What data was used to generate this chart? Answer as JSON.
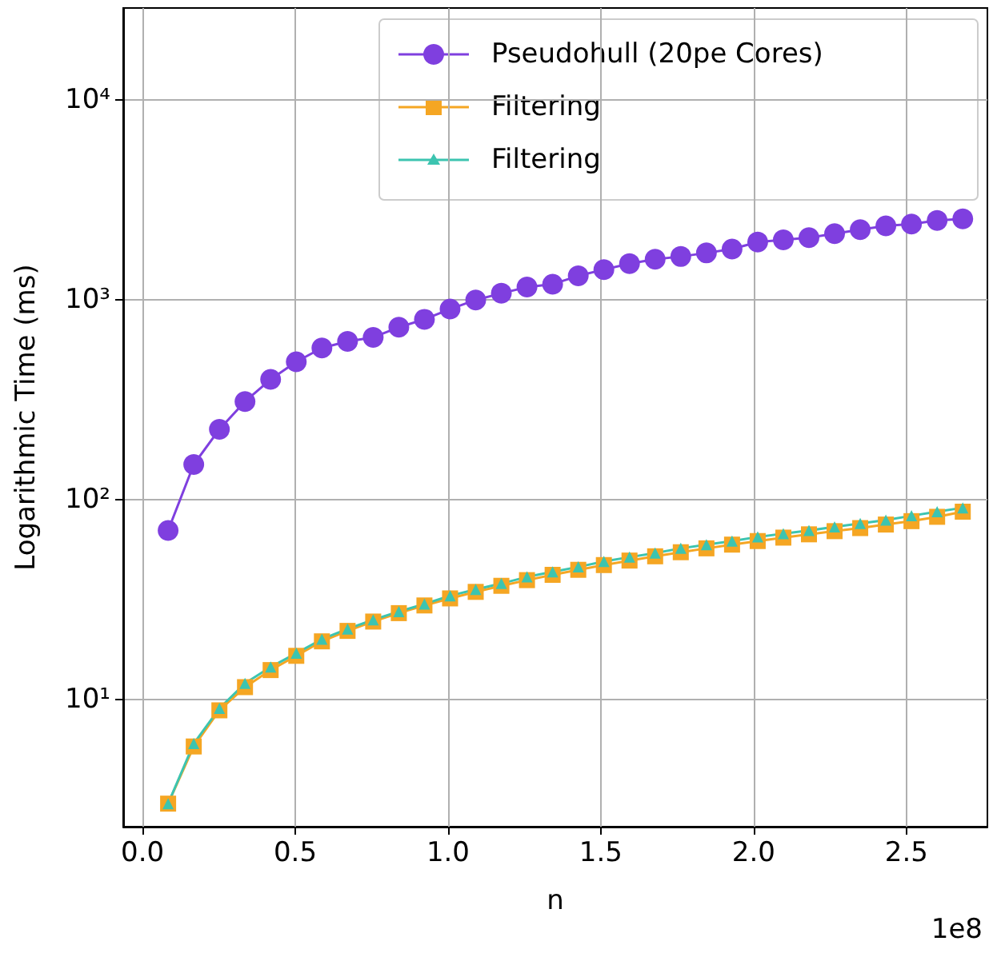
{
  "chart_data": {
    "type": "line",
    "xlabel": "n",
    "ylabel": "Logarithmic Time (ms)",
    "log": "y",
    "grid": true,
    "legend": "top right",
    "x": [
      0.0839,
      0.1678,
      0.2517,
      0.3355,
      0.4194,
      0.5033,
      0.5872,
      0.6711,
      0.755,
      0.8389,
      0.9227,
      1.0066,
      1.0905,
      1.1744,
      1.2583,
      1.3422,
      1.4261,
      1.5099,
      1.5938,
      1.6777,
      1.7616,
      1.8455,
      1.9294,
      2.0133,
      2.0972,
      2.181,
      2.2649,
      2.3488,
      2.4327,
      2.5166,
      2.6005,
      2.6844
    ],
    "xlim": [
      -0.063,
      2.765
    ],
    "xticks": [
      {
        "value": 0,
        "label": "0.0"
      },
      0.5,
      {
        "value": 1,
        "label": "1.0"
      },
      1.5,
      {
        "value": 2,
        "label": "2.0"
      },
      2.5
    ],
    "ylim": [
      2.3,
      29000
    ],
    "yticks": [
      {
        "value": 10,
        "label": "10¹"
      },
      {
        "value": 100,
        "label": "10²"
      },
      {
        "value": 1000,
        "label": "10³"
      },
      {
        "value": 10000,
        "label": "10⁴"
      }
    ],
    "annotations": [
      "1e8"
    ],
    "series": [
      {
        "name": "Pseudohull (20pe Cores)",
        "color": "#7f3fdf",
        "marker": "circle",
        "values": [
          70,
          150,
          225,
          310,
          400,
          490,
          575,
          620,
          650,
          730,
          800,
          900,
          1000,
          1080,
          1160,
          1200,
          1320,
          1420,
          1520,
          1600,
          1650,
          1720,
          1800,
          1950,
          2000,
          2050,
          2150,
          2250,
          2350,
          2400,
          2500,
          2550
        ]
      },
      {
        "name": "Filtering",
        "color": "#f5a623",
        "marker": "square",
        "values": [
          3,
          5.8,
          8.8,
          11.5,
          14,
          16.5,
          19.5,
          22,
          24.5,
          27,
          29.5,
          32,
          34.5,
          37,
          39.5,
          42,
          44.5,
          47,
          49.5,
          52,
          54.5,
          57,
          59.5,
          62,
          64.5,
          67,
          69.5,
          72,
          75,
          78,
          82,
          87
        ]
      },
      {
        "name": "Filtering",
        "color": "#3cc4b0",
        "marker": "triangle",
        "values": [
          3,
          6,
          9,
          12,
          14.5,
          17,
          20,
          22.5,
          25,
          27.5,
          30,
          33,
          35.5,
          38,
          41,
          43.5,
          46,
          49,
          51.5,
          54,
          57,
          59.5,
          62,
          65,
          67.5,
          70,
          73,
          76,
          79,
          83,
          87,
          91
        ]
      }
    ]
  }
}
